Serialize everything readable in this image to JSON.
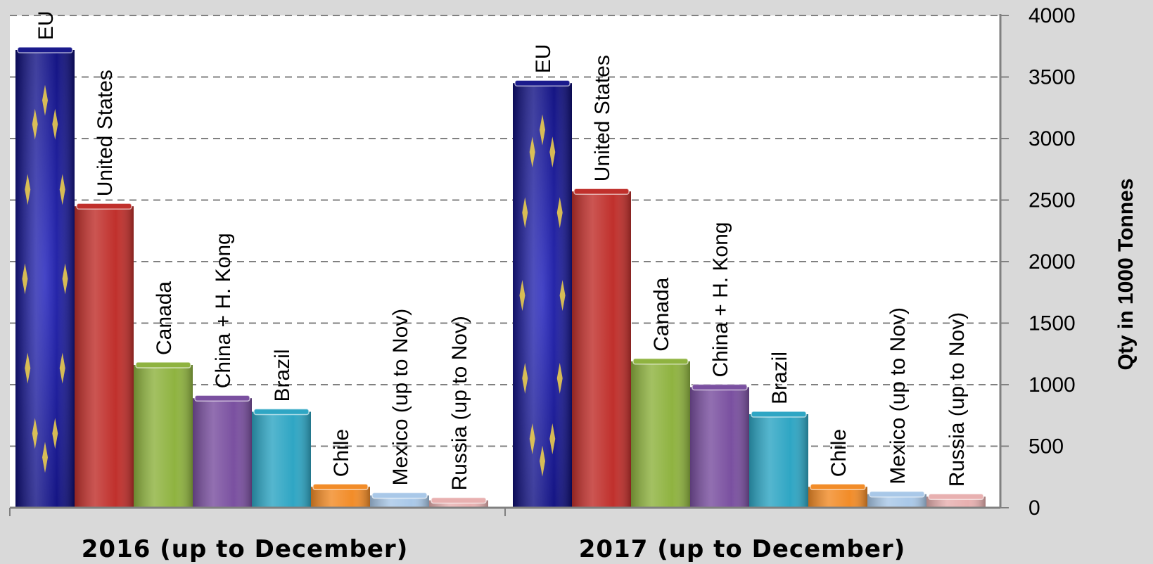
{
  "chart_data": {
    "type": "bar",
    "ylabel": "Qty in 1000 Tonnes",
    "ylim": [
      0,
      4000
    ],
    "yticks": [
      0,
      500,
      1000,
      1500,
      2000,
      2500,
      3000,
      3500,
      4000
    ],
    "grid": true,
    "y_axis_side": "right",
    "categories": [
      "EU",
      "United States",
      "Canada",
      "China + H. Kong",
      "Brazil",
      "Chile",
      "Mexico (up to Nov)",
      "Russia (up to Nov)"
    ],
    "colors": [
      "#1a1a8c",
      "#c0302c",
      "#8fb340",
      "#7a50a0",
      "#2fa6c4",
      "#f28c28",
      "#a9c8e8",
      "#e8b0b0"
    ],
    "groups": [
      {
        "name": "2016 (up to December)",
        "values": [
          3720,
          2450,
          1160,
          890,
          780,
          170,
          100,
          60
        ]
      },
      {
        "name": "2017 (up to December)",
        "values": [
          3450,
          2570,
          1190,
          980,
          760,
          170,
          110,
          90
        ]
      }
    ]
  }
}
